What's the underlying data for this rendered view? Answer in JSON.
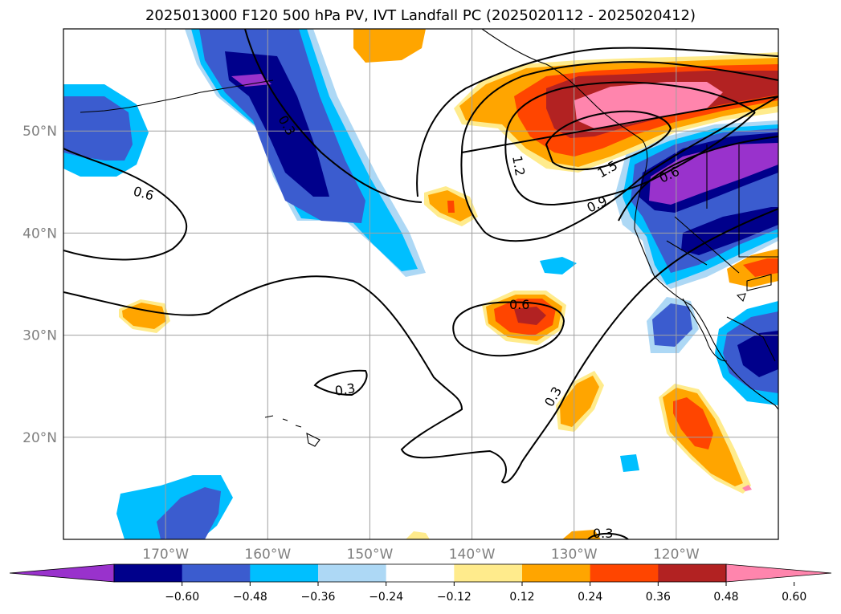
{
  "title": "2025013000 F120 500 hPa PV, IVT Landfall PC (2025020112 - 2025020412)",
  "map": {
    "lon_range": [
      -180,
      -110
    ],
    "lat_range": [
      10,
      60
    ],
    "lon_labels": [
      "170°W",
      "160°W",
      "150°W",
      "140°W",
      "130°W",
      "120°W"
    ],
    "lon_values": [
      -170,
      -160,
      -150,
      -140,
      -130,
      -120
    ],
    "lat_labels": [
      "20°N",
      "30°N",
      "40°N",
      "50°N"
    ],
    "lat_values": [
      20,
      30,
      40,
      50
    ],
    "grid": true
  },
  "colorbar": {
    "ticks": [
      "−0.60",
      "−0.48",
      "−0.36",
      "−0.24",
      "−0.12",
      "0.12",
      "0.24",
      "0.36",
      "0.48",
      "0.60"
    ],
    "colors": [
      "#9932cc",
      "#00008b",
      "#3b5ccf",
      "#00bfff",
      "#add8f5",
      "#ffffff",
      "#ffeb8c",
      "#ffa500",
      "#ff4500",
      "#b22222",
      "#ff85ad"
    ]
  },
  "contour_labels": [
    "0.3",
    "0.6",
    "1.2",
    "1.5",
    "0.9",
    "0.6",
    "0.6",
    "0.3",
    "0.3",
    "0.3"
  ],
  "colors": {
    "purple": "#9932cc",
    "navy": "#00008b",
    "royal": "#3b5ccf",
    "cyan": "#00bfff",
    "lightblue": "#add8f5",
    "yellow": "#ffeb8c",
    "orange": "#ffa500",
    "redorange": "#ff4500",
    "firebrick": "#b22222",
    "pink": "#ff85ad"
  }
}
